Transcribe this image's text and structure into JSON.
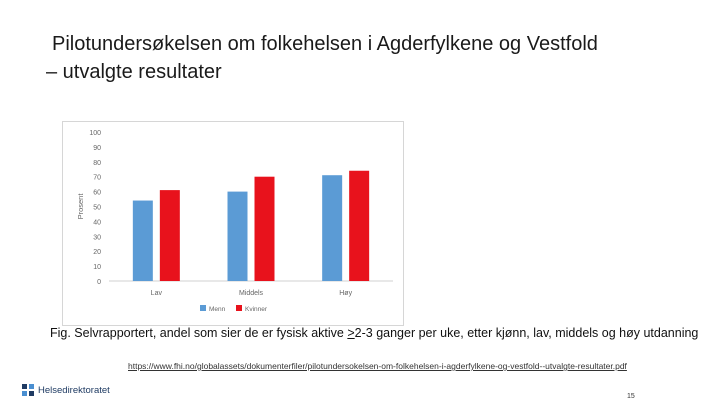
{
  "slide": {
    "title_line1": "Pilotundersøkelsen om folkehelsen i Agderfylkene og Vestfold",
    "title_line2": "– utvalgte resultater",
    "caption_pre": "Fig. Selvrapportert, andel som sier de er fysisk aktive ",
    "caption_ge": ">",
    "caption_post": "2-3 ganger per uke, etter kjønn, lav, middels og høy utdanning",
    "source_url": "https://www.fhi.no/globalassets/dokumenterfiler/pilotundersokelsen-om-folkehelsen-i-agderfylkene-og-vestfold--utvalgte-resultater.pdf",
    "logo_text": "Helsedirektoratet",
    "page_number": "15"
  },
  "colors": {
    "menn": "#5b9bd5",
    "kvinner": "#e8121c",
    "logo": "#1f3b63"
  },
  "chart_data": {
    "type": "bar",
    "categories": [
      "Lav",
      "Middels",
      "Høy"
    ],
    "series": [
      {
        "name": "Menn",
        "values": [
          54,
          60,
          71
        ]
      },
      {
        "name": "Kvinner",
        "values": [
          61,
          70,
          74
        ]
      }
    ],
    "ylabel": "Prosent",
    "ylim": [
      0,
      100
    ],
    "yticks": [
      0,
      10,
      20,
      30,
      40,
      50,
      60,
      70,
      80,
      90,
      100
    ],
    "legend_position": "bottom",
    "grid": false
  }
}
